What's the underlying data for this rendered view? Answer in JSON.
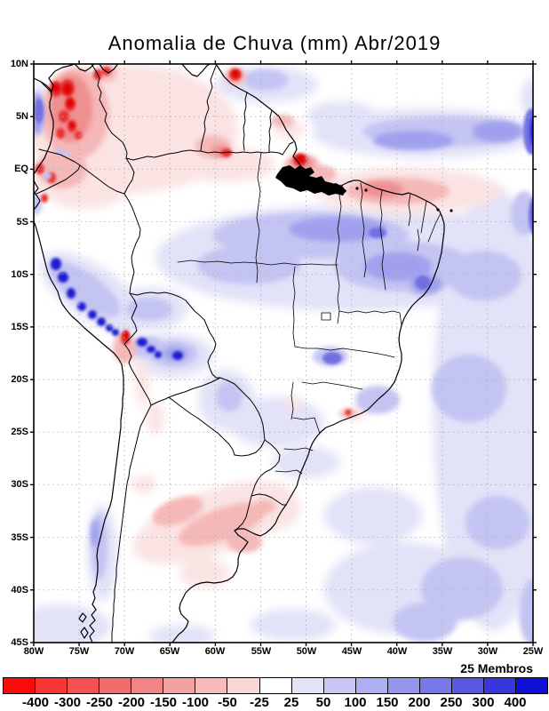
{
  "title": "Anomalia de Chuva (mm) Abr/2019",
  "map": {
    "lat_ticks": [
      "10N",
      "5N",
      "EQ",
      "5S",
      "10S",
      "15S",
      "20S",
      "25S",
      "30S",
      "35S",
      "40S",
      "45S"
    ],
    "lon_ticks": [
      "80W",
      "75W",
      "70W",
      "65W",
      "60W",
      "55W",
      "50W",
      "45W",
      "40W",
      "35W",
      "30W",
      "25W"
    ],
    "members_label": "25 Membros"
  },
  "colorbar": {
    "tick_labels": [
      "-400",
      "-300",
      "-250",
      "-200",
      "-150",
      "-100",
      "-50",
      "-25",
      "25",
      "50",
      "100",
      "150",
      "200",
      "250",
      "300",
      "400"
    ],
    "colors": [
      "#fc0a0a",
      "#f93535",
      "#f55151",
      "#f26c6c",
      "#f18585",
      "#f3a2a2",
      "#f6bcbc",
      "#fad7d7",
      "#ffffff",
      "#e2e2f8",
      "#c8c8f4",
      "#aeaef0",
      "#9595ec",
      "#7878e8",
      "#5858e2",
      "#3737dd",
      "#0f0fd8"
    ]
  },
  "palette": {
    "p1": "#fbe3e3",
    "p2": "#f5b8b8",
    "p3": "#ef8f8f",
    "r5": "#e63030",
    "r6": "#e00000",
    "b1": "#e2e2f8",
    "b2": "#c4c4f3",
    "b3": "#a0a0ee",
    "b4": "#7070e2",
    "b5": "#1c1ccf"
  },
  "chart_data": {
    "type": "heatmap",
    "subtype": "filled-contour-anomaly-map",
    "title": "Anomalia de Chuva (mm) Abr/2019",
    "units": "mm",
    "ensemble_annotation": "25 Membros",
    "lon_range": [
      "80W",
      "25W"
    ],
    "lat_range": [
      "10N",
      "45S"
    ],
    "contour_levels": [
      -400,
      -300,
      -250,
      -200,
      -150,
      -100,
      -50,
      -25,
      25,
      50,
      100,
      150,
      200,
      250,
      300,
      400
    ],
    "legend_position": "bottom",
    "grid": "dotted 5-degree graticule",
    "notable_features": [
      "strong negative anomaly (red) over Colombia and western Venezuela near 75W 0-8N",
      "negative anomaly band over equatorial Atlantic near 50W-35W around EQ-2S",
      "red spot at Amazon river mouth near 50W EQ",
      "positive anomaly (blue) band across central Amazon and northeast Brazil 5S-10S",
      "intense positive anomaly spots along Peruvian Andes 8S-15S",
      "small intense negative spot near 70W 16S at Peru-Bolivia border",
      "positive anomalies over tropical Atlantic east of Brazil and near 25W",
      "weak negative anomaly band over central-eastern Argentina and Uruguay 30S-38S",
      "weak positive anomalies along central Chile coast and South Atlantic"
    ]
  }
}
